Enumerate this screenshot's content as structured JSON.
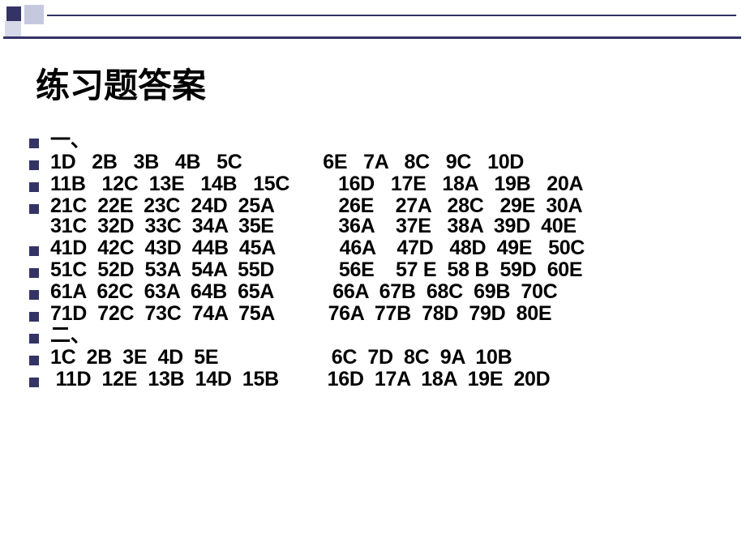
{
  "decoration": {
    "square1_color": "#333366",
    "square2_color": "#c5c9e0",
    "square3_color": "#d5d9e8",
    "line_color": "#333366"
  },
  "title": "练习题答案",
  "title_fontsize": 42,
  "row_fontsize": 25,
  "bullet_color": "#333366",
  "text_color": "#000000",
  "background_color": "#ffffff",
  "items": [
    {
      "lines": [
        "一、"
      ]
    },
    {
      "lines": [
        "1D   2B   3B   4B   5C               6E   7A   8C   9C   10D"
      ]
    },
    {
      "lines": [
        "11B   12C  13E   14B   15C         16D   17E   18A   19B   20A"
      ]
    },
    {
      "lines": [
        "21C  22E  23C  24D  25A            26E    27A   28C   29E  30A",
        "31C  32D  33C  34A  35E            36A    37E   38A  39D  40E"
      ]
    },
    {
      "lines": [
        "41D  42C  43D  44B  45A            46A    47D   48D  49E   50C"
      ]
    },
    {
      "lines": [
        "51C  52D  53A  54A  55D            56E    57 E  58 B  59D  60E"
      ]
    },
    {
      "lines": [
        "61A  62C  63A  64B  65A           66A  67B  68C  69B  70C"
      ]
    },
    {
      "lines": [
        "71D  72C  73C  74A  75A          76A  77B  78D  79D  80E"
      ]
    },
    {
      "lines": [
        "二、"
      ]
    },
    {
      "lines": [
        "1C  2B  3E  4D  5E                     6C  7D  8C  9A  10B"
      ]
    },
    {
      "lines": [
        " 11D  12E  13B  14D  15B         16D  17A  18A  19E  20D"
      ]
    }
  ]
}
